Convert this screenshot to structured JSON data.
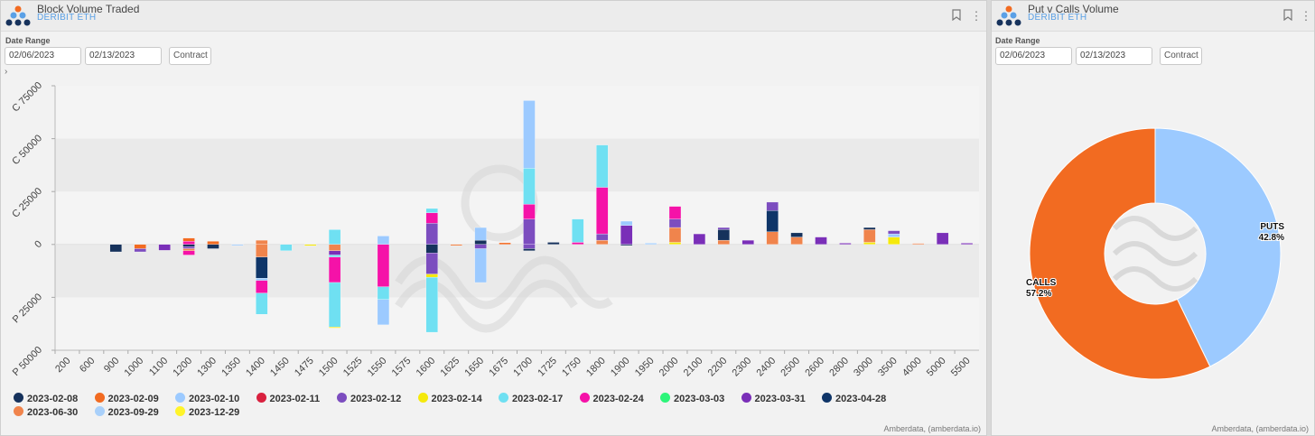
{
  "left": {
    "title": "Block Volume Traded",
    "subtitle": "DERIBIT ETH",
    "date_range_label": "Date Range",
    "date_from": "02/06/2023",
    "date_to": "02/13/2023",
    "contract_label": "Contract",
    "expander": "›",
    "footer": "Amberdata, (amberdata.io)"
  },
  "right": {
    "title": "Put v Calls Volume",
    "subtitle": "DERIBIT ETH",
    "date_range_label": "Date Range",
    "date_from": "02/06/2023",
    "date_to": "02/13/2023",
    "contract_label": "Contract",
    "footer": "Amberdata, (amberdata.io)"
  },
  "icons": {
    "bookmark": "bookmark-icon",
    "menu": "kebab-menu-icon",
    "logo": "amberdata-logo-icon"
  },
  "chart_data": [
    {
      "type": "bar",
      "stacked": true,
      "title": "Block Volume Traded",
      "x_ticks": [
        "200",
        "600",
        "900",
        "1000",
        "1100",
        "1200",
        "1300",
        "1350",
        "1400",
        "1450",
        "1475",
        "1500",
        "1525",
        "1550",
        "1575",
        "1600",
        "1625",
        "1650",
        "1675",
        "1700",
        "1725",
        "1750",
        "1800",
        "1900",
        "1950",
        "2000",
        "2100",
        "2200",
        "2300",
        "2400",
        "2500",
        "2600",
        "2800",
        "3000",
        "3500",
        "4000",
        "5000",
        "5500"
      ],
      "y_ticks": [
        {
          "label": "C 75000",
          "value": 75000
        },
        {
          "label": "C 50000",
          "value": 50000
        },
        {
          "label": "C 25000",
          "value": 25000
        },
        {
          "label": "0",
          "value": 0
        },
        {
          "label": "P 25000",
          "value": -25000
        },
        {
          "label": "P 50000",
          "value": -50000
        }
      ],
      "ylim": [
        -50000,
        75000
      ],
      "legend": [
        {
          "name": "2023-02-08",
          "color": "#16325c"
        },
        {
          "name": "2023-02-09",
          "color": "#f26b21"
        },
        {
          "name": "2023-02-10",
          "color": "#9ccaff"
        },
        {
          "name": "2023-02-11",
          "color": "#d9213f"
        },
        {
          "name": "2023-02-12",
          "color": "#7c4dbf"
        },
        {
          "name": "2023-02-14",
          "color": "#f5e90c"
        },
        {
          "name": "2023-02-17",
          "color": "#6fe0f2"
        },
        {
          "name": "2023-02-24",
          "color": "#f512a8"
        },
        {
          "name": "2023-03-03",
          "color": "#2df57a"
        },
        {
          "name": "2023-03-31",
          "color": "#7a2fb8"
        },
        {
          "name": "2023-04-28",
          "color": "#0f3568"
        },
        {
          "name": "2023-06-30",
          "color": "#f0844c"
        },
        {
          "name": "2023-09-29",
          "color": "#a9d0fa"
        },
        {
          "name": "2023-12-29",
          "color": "#fff42a"
        }
      ],
      "legend_placement": "bottom",
      "bars": [
        {
          "strike": "900",
          "calls": [],
          "puts": [
            [
              "2023-02-08",
              3500
            ]
          ]
        },
        {
          "strike": "1000",
          "calls": [],
          "puts": [
            [
              "2023-02-09",
              2000
            ],
            [
              "2023-02-12",
              1500
            ]
          ]
        },
        {
          "strike": "1100",
          "calls": [],
          "puts": [
            [
              "2023-03-31",
              2800
            ]
          ]
        },
        {
          "strike": "1200",
          "calls": [
            [
              "2023-02-24",
              1500
            ],
            [
              "2023-02-09",
              1500
            ]
          ],
          "puts": [
            [
              "2023-02-08",
              1000
            ],
            [
              "2023-02-12",
              1000
            ],
            [
              "2023-06-30",
              1000
            ],
            [
              "2023-02-24",
              2000
            ]
          ]
        },
        {
          "strike": "1300",
          "calls": [
            [
              "2023-02-09",
              1500
            ]
          ],
          "puts": [
            [
              "2023-02-08",
              2000
            ]
          ]
        },
        {
          "strike": "1350",
          "calls": [],
          "puts": [
            [
              "2023-02-10",
              500
            ]
          ]
        },
        {
          "strike": "1400",
          "calls": [
            [
              "2023-06-30",
              2000
            ]
          ],
          "puts": [
            [
              "2023-06-30",
              6000
            ],
            [
              "2023-04-28",
              10000
            ],
            [
              "2023-02-10",
              1000
            ],
            [
              "2023-02-24",
              6000
            ],
            [
              "2023-02-17",
              10000
            ]
          ]
        },
        {
          "strike": "1450",
          "calls": [],
          "puts": [
            [
              "2023-02-17",
              3000
            ]
          ]
        },
        {
          "strike": "1475",
          "calls": [],
          "puts": [
            [
              "2023-02-14",
              600
            ]
          ]
        },
        {
          "strike": "1500",
          "calls": [
            [
              "2023-02-17",
              7000
            ]
          ],
          "puts": [
            [
              "2023-06-30",
              3000
            ],
            [
              "2023-03-31",
              2000
            ],
            [
              "2023-02-17",
              1000
            ],
            [
              "2023-02-24",
              12000
            ],
            [
              "2023-02-17",
              21000
            ],
            [
              "2023-02-14",
              500
            ]
          ]
        },
        {
          "strike": "1550",
          "calls": [
            [
              "2023-02-10",
              4000
            ]
          ],
          "puts": [
            [
              "2023-02-24",
              20000
            ],
            [
              "2023-02-17",
              6000
            ],
            [
              "2023-02-10",
              12000
            ]
          ]
        },
        {
          "strike": "1600",
          "calls": [
            [
              "2023-02-12",
              10000
            ],
            [
              "2023-02-24",
              5000
            ],
            [
              "2023-02-17",
              2000
            ]
          ],
          "puts": [
            [
              "2023-02-08",
              4000
            ],
            [
              "2023-02-12",
              10000
            ],
            [
              "2023-02-14",
              1500
            ],
            [
              "2023-02-17",
              26000
            ]
          ]
        },
        {
          "strike": "1625",
          "calls": [],
          "puts": [
            [
              "2023-02-09",
              500
            ]
          ]
        },
        {
          "strike": "1650",
          "calls": [
            [
              "2023-02-08",
              2000
            ],
            [
              "2023-02-10",
              6000
            ]
          ],
          "puts": [
            [
              "2023-02-12",
              2000
            ],
            [
              "2023-02-10",
              16000
            ]
          ]
        },
        {
          "strike": "1675",
          "calls": [
            [
              "2023-02-09",
              800
            ]
          ],
          "puts": []
        },
        {
          "strike": "1700",
          "calls": [
            [
              "2023-02-12",
              12000
            ],
            [
              "2023-02-24",
              7000
            ],
            [
              "2023-02-17",
              17000
            ],
            [
              "2023-02-10",
              32000
            ]
          ],
          "puts": [
            [
              "2023-02-12",
              2000
            ],
            [
              "2023-02-08",
              1000
            ]
          ]
        },
        {
          "strike": "1725",
          "calls": [
            [
              "2023-02-08",
              1000
            ]
          ],
          "puts": []
        },
        {
          "strike": "1750",
          "calls": [
            [
              "2023-02-24",
              1000
            ],
            [
              "2023-02-17",
              11000
            ]
          ],
          "puts": []
        },
        {
          "strike": "1800",
          "calls": [
            [
              "2023-06-30",
              2000
            ],
            [
              "2023-02-12",
              3000
            ],
            [
              "2023-02-24",
              22000
            ],
            [
              "2023-02-17",
              20000
            ]
          ],
          "puts": []
        },
        {
          "strike": "1900",
          "calls": [
            [
              "2023-03-31",
              9000
            ],
            [
              "2023-02-10",
              2000
            ]
          ],
          "puts": [
            [
              "2023-02-08",
              500
            ]
          ]
        },
        {
          "strike": "1950",
          "calls": [
            [
              "2023-02-10",
              600
            ]
          ],
          "puts": []
        },
        {
          "strike": "2000",
          "calls": [
            [
              "2023-02-14",
              1000
            ],
            [
              "2023-06-30",
              7000
            ],
            [
              "2023-02-12",
              4000
            ],
            [
              "2023-02-24",
              6000
            ]
          ],
          "puts": []
        },
        {
          "strike": "2100",
          "calls": [
            [
              "2023-03-31",
              5000
            ]
          ],
          "puts": []
        },
        {
          "strike": "2200",
          "calls": [
            [
              "2023-06-30",
              2000
            ],
            [
              "2023-02-08",
              5000
            ],
            [
              "2023-02-12",
              1000
            ]
          ],
          "puts": []
        },
        {
          "strike": "2300",
          "calls": [
            [
              "2023-03-31",
              2000
            ]
          ],
          "puts": []
        },
        {
          "strike": "2400",
          "calls": [
            [
              "2023-06-30",
              6000
            ],
            [
              "2023-04-28",
              10000
            ],
            [
              "2023-02-12",
              4000
            ]
          ],
          "puts": []
        },
        {
          "strike": "2500",
          "calls": [
            [
              "2023-06-30",
              3500
            ],
            [
              "2023-02-08",
              2000
            ]
          ],
          "puts": []
        },
        {
          "strike": "2600",
          "calls": [
            [
              "2023-03-31",
              3500
            ]
          ],
          "puts": []
        },
        {
          "strike": "2800",
          "calls": [
            [
              "2023-03-31",
              600
            ]
          ],
          "puts": []
        },
        {
          "strike": "3000",
          "calls": [
            [
              "2023-02-14",
              1000
            ],
            [
              "2023-06-30",
              6000
            ],
            [
              "2023-02-08",
              1000
            ]
          ],
          "puts": []
        },
        {
          "strike": "3500",
          "calls": [
            [
              "2023-02-14",
              3500
            ],
            [
              "2023-02-10",
              1500
            ],
            [
              "2023-02-12",
              1500
            ]
          ],
          "puts": []
        },
        {
          "strike": "4000",
          "calls": [
            [
              "2023-06-30",
              500
            ]
          ],
          "puts": []
        },
        {
          "strike": "5000",
          "calls": [
            [
              "2023-03-31",
              5500
            ]
          ],
          "puts": []
        },
        {
          "strike": "5500",
          "calls": [
            [
              "2023-03-31",
              600
            ]
          ],
          "puts": []
        }
      ]
    },
    {
      "type": "pie",
      "donut": true,
      "title": "Put v Calls Volume",
      "slices": [
        {
          "label": "PUTS",
          "percent_label": "42.8%",
          "value": 42.8,
          "color": "#9ccaff"
        },
        {
          "label": "CALLS",
          "percent_label": "57.2%",
          "value": 57.2,
          "color": "#f26b21"
        }
      ]
    }
  ]
}
